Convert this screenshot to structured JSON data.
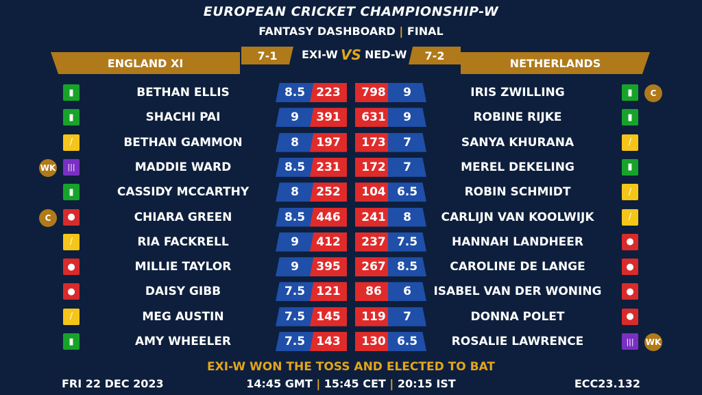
{
  "header": {
    "title": "EUROPEAN CRICKET CHAMPIONSHIP-W",
    "subtitle_left": "FANTASY DASHBOARD",
    "subtitle_sep": "|",
    "subtitle_right": "FINAL"
  },
  "match": {
    "home_name": "ENGLAND XI",
    "away_name": "NETHERLANDS",
    "home_code": "EXI-W",
    "away_code": "NED-W",
    "home_score": "7-1",
    "away_score": "7-2",
    "vs": "VS"
  },
  "home_players": [
    {
      "name": "BETHAN ELLIS",
      "credit": "8.5",
      "points": "223",
      "role": "ar",
      "tag": ""
    },
    {
      "name": "SHACHI PAI",
      "credit": "9",
      "points": "391",
      "role": "ar",
      "tag": ""
    },
    {
      "name": "BETHAN GAMMON",
      "credit": "8",
      "points": "197",
      "role": "bat",
      "tag": ""
    },
    {
      "name": "MADDIE WARD",
      "credit": "8.5",
      "points": "231",
      "role": "wk",
      "tag": "WK"
    },
    {
      "name": "CASSIDY MCCARTHY",
      "credit": "8",
      "points": "252",
      "role": "ar",
      "tag": ""
    },
    {
      "name": "CHIARA GREEN",
      "credit": "8.5",
      "points": "446",
      "role": "bowl",
      "tag": "C"
    },
    {
      "name": "RIA FACKRELL",
      "credit": "9",
      "points": "412",
      "role": "bat",
      "tag": ""
    },
    {
      "name": "MILLIE TAYLOR",
      "credit": "9",
      "points": "395",
      "role": "bowl",
      "tag": ""
    },
    {
      "name": "DAISY GIBB",
      "credit": "7.5",
      "points": "121",
      "role": "bowl",
      "tag": ""
    },
    {
      "name": "MEG AUSTIN",
      "credit": "7.5",
      "points": "145",
      "role": "bat",
      "tag": ""
    },
    {
      "name": "AMY WHEELER",
      "credit": "7.5",
      "points": "143",
      "role": "ar",
      "tag": ""
    }
  ],
  "away_players": [
    {
      "name": "IRIS ZWILLING",
      "credit": "9",
      "points": "798",
      "role": "ar",
      "tag": "C"
    },
    {
      "name": "ROBINE RIJKE",
      "credit": "9",
      "points": "631",
      "role": "ar",
      "tag": ""
    },
    {
      "name": "SANYA KHURANA",
      "credit": "7",
      "points": "173",
      "role": "bat",
      "tag": ""
    },
    {
      "name": "MEREL DEKELING",
      "credit": "7",
      "points": "172",
      "role": "ar",
      "tag": ""
    },
    {
      "name": "ROBIN SCHMIDT",
      "credit": "6.5",
      "points": "104",
      "role": "bat",
      "tag": ""
    },
    {
      "name": "CARLIJN VAN KOOLWIJK",
      "credit": "8",
      "points": "241",
      "role": "bat",
      "tag": ""
    },
    {
      "name": "HANNAH LANDHEER",
      "credit": "7.5",
      "points": "237",
      "role": "bowl",
      "tag": ""
    },
    {
      "name": "CAROLINE DE LANGE",
      "credit": "8.5",
      "points": "267",
      "role": "bowl",
      "tag": ""
    },
    {
      "name": "ISABEL VAN DER WONING",
      "credit": "6",
      "points": "86",
      "role": "bowl",
      "tag": ""
    },
    {
      "name": "DONNA POLET",
      "credit": "7",
      "points": "119",
      "role": "bowl",
      "tag": ""
    },
    {
      "name": "ROSALIE LAWRENCE",
      "credit": "6.5",
      "points": "130",
      "role": "wk",
      "tag": "WK"
    }
  ],
  "role_colors": {
    "bat": "#f5c518",
    "bowl": "#d92b2b",
    "ar": "#17a32a",
    "wk": "#7a2fc2"
  },
  "footer": {
    "toss": "EXI-W WON THE TOSS AND ELECTED TO BAT",
    "date": "FRI 22 DEC 2023",
    "time_gmt": "14:45 GMT",
    "time_cet": "15:45 CET",
    "time_ist": "20:15 IST",
    "time_sep": "|",
    "match_code": "ECC23.132"
  }
}
